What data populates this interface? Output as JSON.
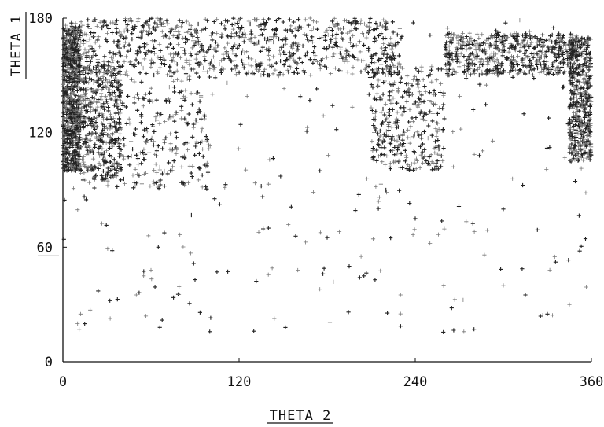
{
  "chart_data": {
    "type": "scatter",
    "title": "",
    "xlabel": "THETA 2",
    "ylabel": "THETA 1",
    "xlim": [
      0,
      360
    ],
    "ylim": [
      0,
      180
    ],
    "x_ticks": [
      "0",
      "120",
      "240",
      "360"
    ],
    "y_ticks": [
      "0",
      "60",
      "120",
      "180"
    ],
    "grid": false,
    "marker": "+",
    "marker_color": "#222222",
    "point_count_estimate": 4000,
    "density_regions": [
      {
        "x_range": [
          0,
          12
        ],
        "y_range": [
          100,
          175
        ],
        "weight": 0.2
      },
      {
        "x_range": [
          12,
          40
        ],
        "y_range": [
          95,
          155
        ],
        "weight": 0.1
      },
      {
        "x_range": [
          0,
          230
        ],
        "y_range": [
          150,
          180
        ],
        "weight": 0.22
      },
      {
        "x_range": [
          260,
          350
        ],
        "y_range": [
          150,
          172
        ],
        "weight": 0.14
      },
      {
        "x_range": [
          345,
          360
        ],
        "y_range": [
          105,
          170
        ],
        "weight": 0.12
      },
      {
        "x_range": [
          210,
          260
        ],
        "y_range": [
          100,
          155
        ],
        "weight": 0.08
      },
      {
        "x_range": [
          20,
          100
        ],
        "y_range": [
          90,
          150
        ],
        "weight": 0.07
      },
      {
        "x_range": [
          0,
          360
        ],
        "y_range": [
          15,
          180
        ],
        "weight": 0.07
      }
    ],
    "sample_points": [
      [
        10,
        20
      ],
      [
        12,
        25
      ],
      [
        32,
        32
      ],
      [
        50,
        35
      ],
      [
        55,
        45
      ],
      [
        60,
        48
      ],
      [
        66,
        18
      ],
      [
        90,
        43
      ],
      [
        130,
        16
      ],
      [
        160,
        48
      ],
      [
        175,
        38
      ],
      [
        195,
        50
      ],
      [
        205,
        45
      ],
      [
        230,
        35
      ],
      [
        250,
        62
      ],
      [
        280,
        17
      ],
      [
        300,
        40
      ],
      [
        315,
        35
      ],
      [
        330,
        25
      ],
      [
        335,
        55
      ],
      [
        345,
        30
      ],
      [
        352,
        58
      ],
      [
        65,
        60
      ],
      [
        140,
        70
      ],
      [
        180,
        65
      ],
      [
        240,
        75
      ],
      [
        140,
        93
      ],
      [
        175,
        100
      ],
      [
        300,
        80
      ],
      [
        220,
        90
      ]
    ]
  }
}
